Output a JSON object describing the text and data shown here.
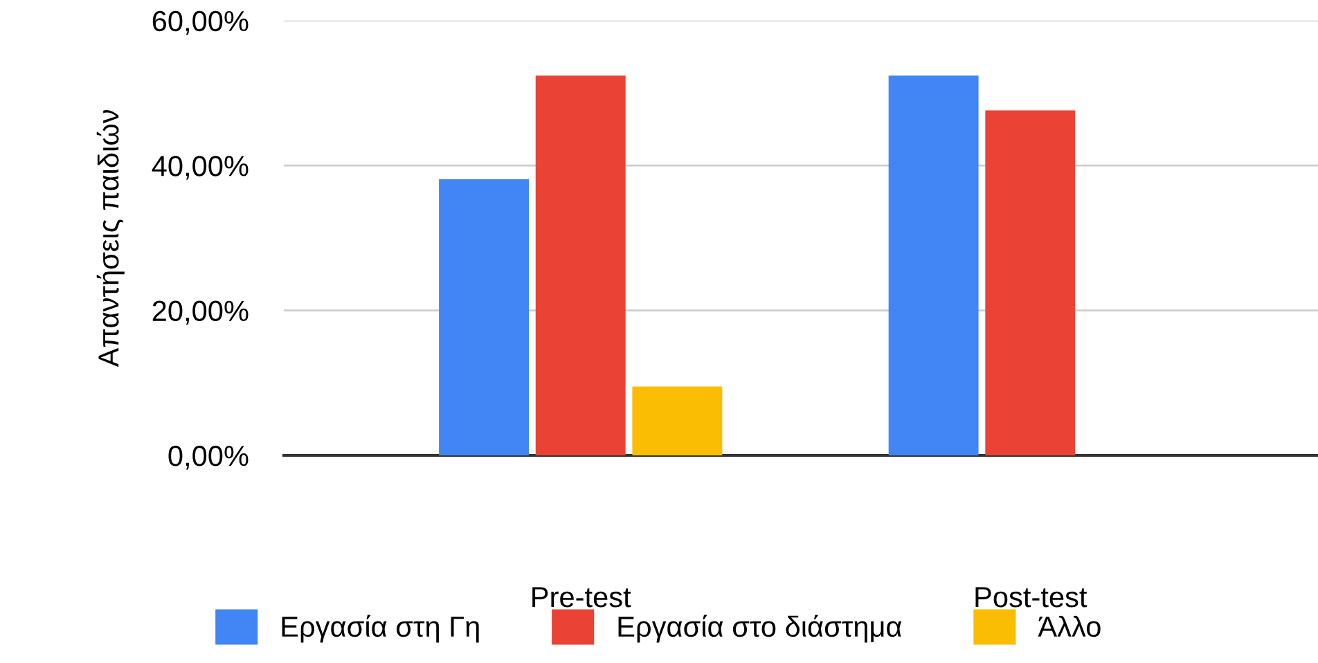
{
  "chart_data": {
    "type": "bar",
    "ylabel": "Απαντήσεις παιδιών",
    "categories": [
      "Pre-test",
      "Post-test"
    ],
    "series": [
      {
        "name": "Εργασία στη Γη",
        "color": "#4285f4",
        "values": [
          38.1,
          52.4
        ]
      },
      {
        "name": "Εργασία στο διάστημα",
        "color": "#ea4335",
        "values": [
          52.4,
          47.6
        ]
      },
      {
        "name": "Άλλο",
        "color": "#fbbc04",
        "values": [
          9.5,
          0
        ]
      }
    ],
    "ylim": [
      0,
      60
    ],
    "yticks": [
      {
        "value": 0,
        "label": "0,00%"
      },
      {
        "value": 20,
        "label": "20,00%"
      },
      {
        "value": 40,
        "label": "40,00%"
      },
      {
        "value": 60,
        "label": "60,00%"
      }
    ],
    "grid": "y",
    "legend": "bottom"
  }
}
